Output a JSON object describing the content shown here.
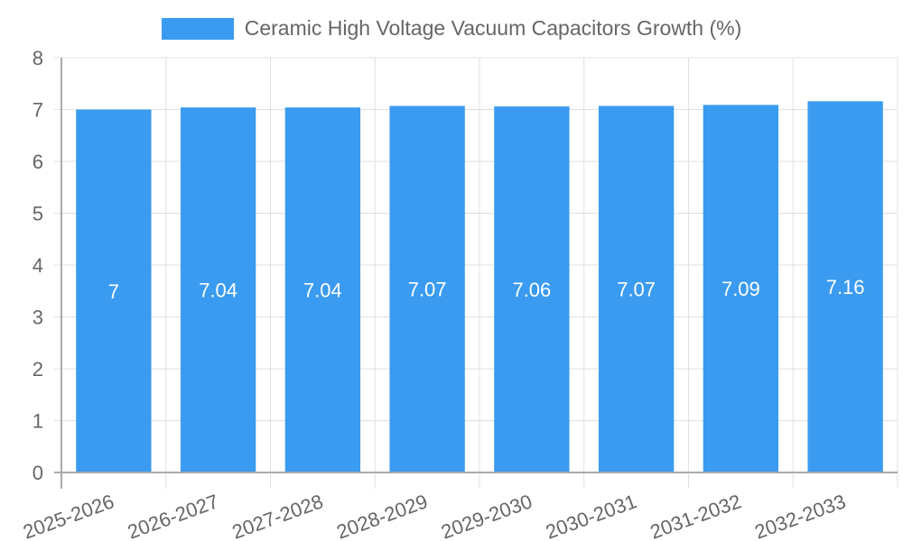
{
  "chart_data": {
    "type": "bar",
    "title": "",
    "legend": [
      {
        "label": "Ceramic High Voltage Vacuum Capacitors Growth (%)",
        "color": "#3a9bf0"
      }
    ],
    "legend_position": "top",
    "categories": [
      "2025-2026",
      "2026-2027",
      "2027-2028",
      "2028-2029",
      "2029-2030",
      "2030-2031",
      "2031-2032",
      "2032-2033"
    ],
    "series": [
      {
        "name": "Ceramic High Voltage Vacuum Capacitors Growth (%)",
        "values": [
          7,
          7.04,
          7.04,
          7.07,
          7.06,
          7.07,
          7.09,
          7.16
        ]
      }
    ],
    "data_labels": [
      "7",
      "7.04",
      "7.04",
      "7.07",
      "7.06",
      "7.07",
      "7.09",
      "7.16"
    ],
    "xlabel": "",
    "ylabel": "",
    "ylim": [
      0,
      8
    ],
    "yticks": [
      "0",
      "1",
      "2",
      "3",
      "4",
      "5",
      "6",
      "7",
      "8"
    ],
    "grid": true,
    "x_tick_rotation": -20
  },
  "colors": {
    "bar": "#3a9bf0",
    "grid": "#e0e0e0",
    "axis": "#aaaaaa",
    "tick_text": "#666666",
    "data_label": "#ffffff"
  }
}
